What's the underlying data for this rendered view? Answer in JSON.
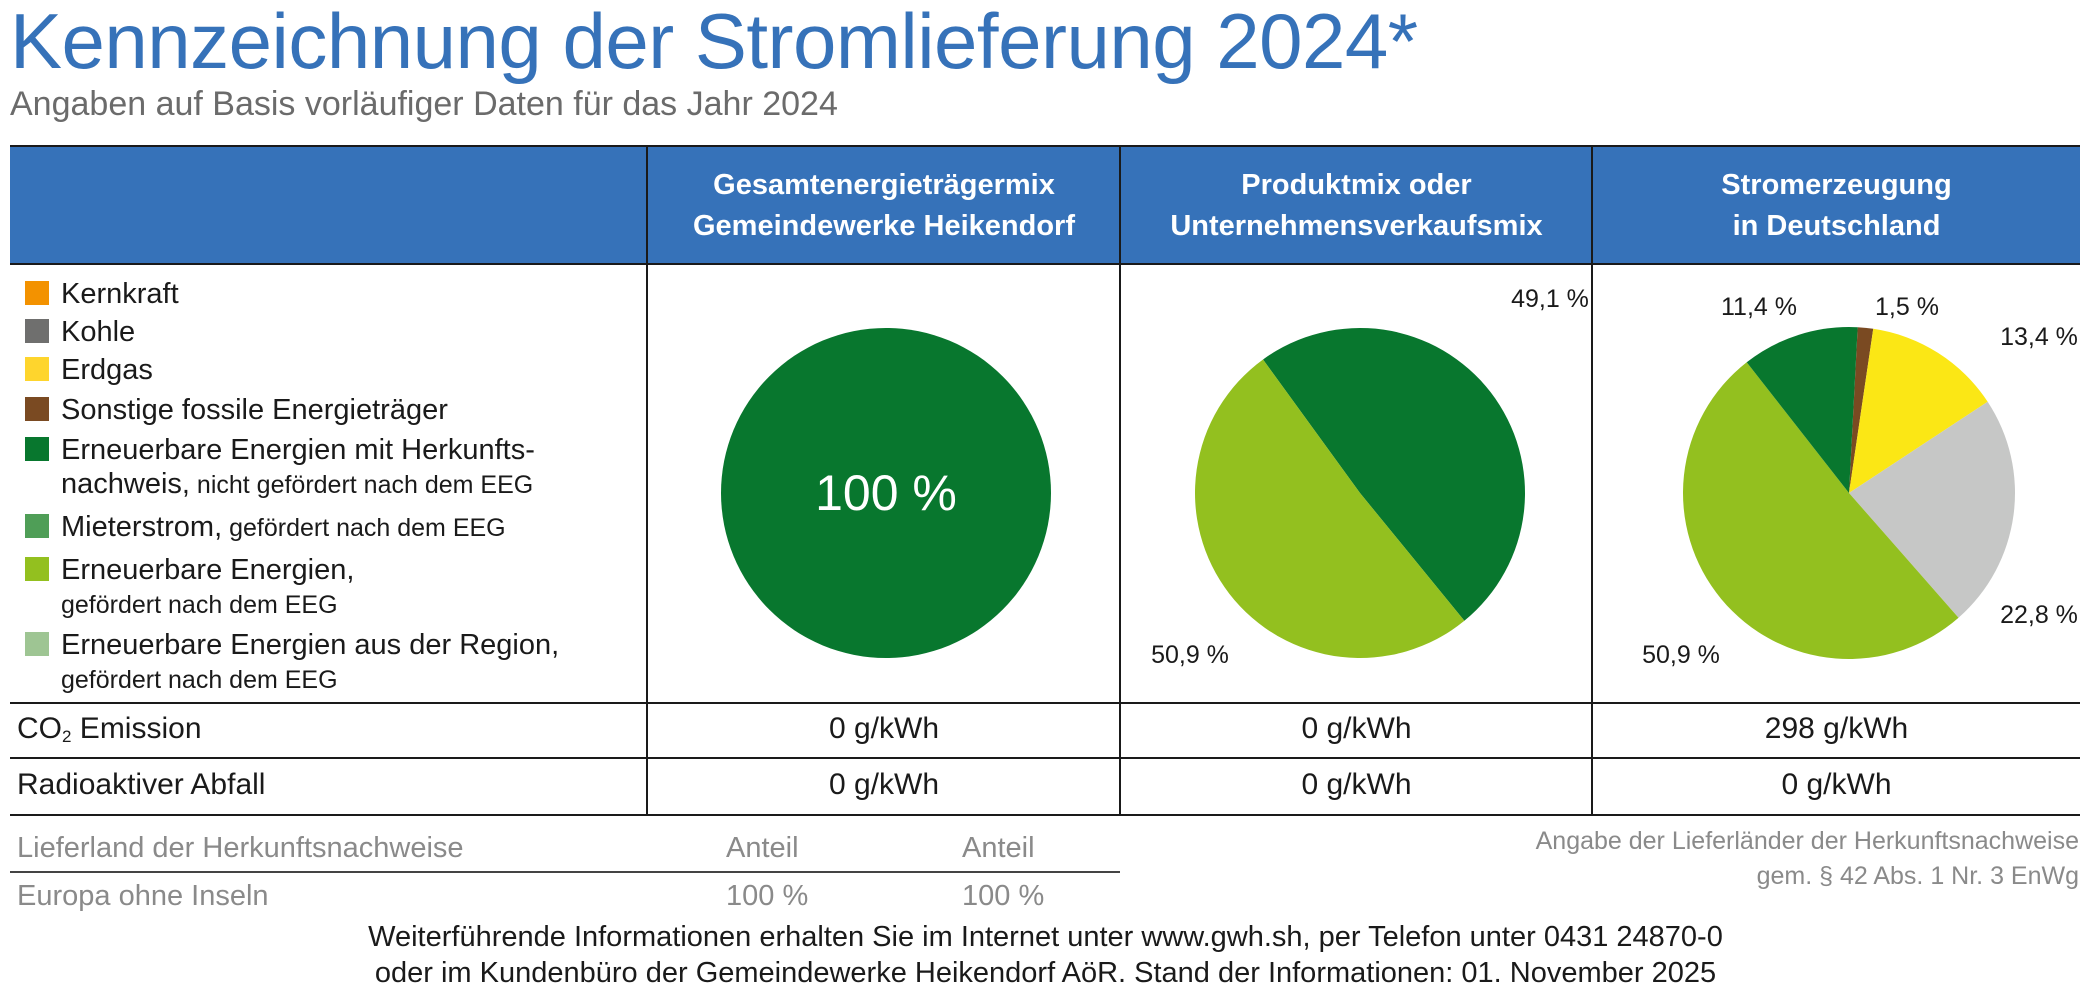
{
  "header": {
    "title": "Kennzeichnung der Stromlieferung 2024*",
    "subtitle": "Angaben auf Basis vorläufiger Daten für das Jahr 2024"
  },
  "columns": [
    {
      "line1": "Gesamtenergieträgermix",
      "line2": "Gemeindewerke Heikendorf"
    },
    {
      "line1": "Produktmix oder",
      "line2": "Unternehmensverkaufsmix"
    },
    {
      "line1": "Stromerzeugung",
      "line2": "in Deutschland"
    }
  ],
  "legend": [
    {
      "main": "Kernkraft",
      "color": "#f39200"
    },
    {
      "main": "Kohle",
      "color": "#6f6f6e"
    },
    {
      "main": "Erdgas",
      "color": "#fed52d"
    },
    {
      "main": "Sonstige fossile Energieträger",
      "color": "#7a4a22"
    },
    {
      "main": "Erneuerbare Energien mit Herkunfts-",
      "line2_main": "nachweis,",
      "line2_small": " nicht gefördert nach dem EEG",
      "color": "#08772e"
    },
    {
      "main": "Mieterstrom,",
      "small": " gefördert nach dem EEG",
      "color": "#4f9e57"
    },
    {
      "main": "Erneuerbare Energien,",
      "line2_small": "gefördert nach dem EEG",
      "color": "#93c01f"
    },
    {
      "main": "Erneuerbare Energien aus der Region,",
      "line2_small": "gefördert nach dem EEG",
      "color": "#9ec593"
    }
  ],
  "chart_data": [
    {
      "type": "pie",
      "title": "Gesamtenergieträgermix Gemeindewerke Heikendorf",
      "slices": [
        {
          "name": "Erneuerbare Energien mit Herkunftsnachweis, nicht gefördert nach dem EEG",
          "value": 100,
          "label": "100 %",
          "color": "#08772e"
        }
      ]
    },
    {
      "type": "pie",
      "title": "Produktmix oder Unternehmensverkaufsmix",
      "slices": [
        {
          "name": "Erneuerbare Energien mit Herkunftsnachweis, nicht gefördert nach dem EEG",
          "value": 49.1,
          "label": "49,1 %",
          "color": "#08772e"
        },
        {
          "name": "Erneuerbare Energien, gefördert nach dem EEG",
          "value": 50.9,
          "label": "50,9 %",
          "color": "#93c01f"
        }
      ]
    },
    {
      "type": "pie",
      "title": "Stromerzeugung in Deutschland",
      "slices": [
        {
          "name": "Sonstige fossile Energieträger",
          "value": 1.5,
          "label": "1,5 %",
          "color": "#7a4a22"
        },
        {
          "name": "Erdgas",
          "value": 13.4,
          "label": "13,4 %",
          "color": "#fbe715"
        },
        {
          "name": "Kohle",
          "value": 22.8,
          "label": "22,8 %",
          "color": "#c6c7c6"
        },
        {
          "name": "Erneuerbare Energien, gefördert nach dem EEG",
          "value": 50.9,
          "label": "50,9 %",
          "color": "#93c01f"
        },
        {
          "name": "Erneuerbare Energien mit Herkunftsnachweis, nicht gefördert nach dem EEG",
          "value": 11.4,
          "label": "11,4 %",
          "color": "#08772e"
        }
      ]
    }
  ],
  "metrics": [
    {
      "label_pre": "CO",
      "label_sub": "2",
      "label_post": " Emission",
      "values": [
        "0 g/kWh",
        "0 g/kWh",
        "298 g/kWh"
      ]
    },
    {
      "label": "Radioaktiver Abfall",
      "values": [
        "0 g/kWh",
        "0 g/kWh",
        "0 g/kWh"
      ]
    }
  ],
  "lieferland": {
    "header": "Lieferland der Herkunftsnachweise",
    "col1": "Anteil",
    "col2": "Anteil",
    "row_label": "Europa ohne Inseln",
    "row_val1": "100 %",
    "row_val2": "100 %"
  },
  "note": {
    "line1": "Angabe der Lieferländer der Herkunftsnachweise",
    "line2": "gem. § 42 Abs. 1 Nr. 3 EnWg"
  },
  "footer": {
    "line1": "Weiterführende Informationen erhalten Sie im Internet unter www.gwh.sh, per Telefon unter 0431 24870-0",
    "line2": "oder im Kundenbüro der Gemeindewerke Heikendorf AöR. Stand der Informationen: 01. November 2025"
  },
  "colors": {
    "brand_blue": "#3672b9"
  }
}
